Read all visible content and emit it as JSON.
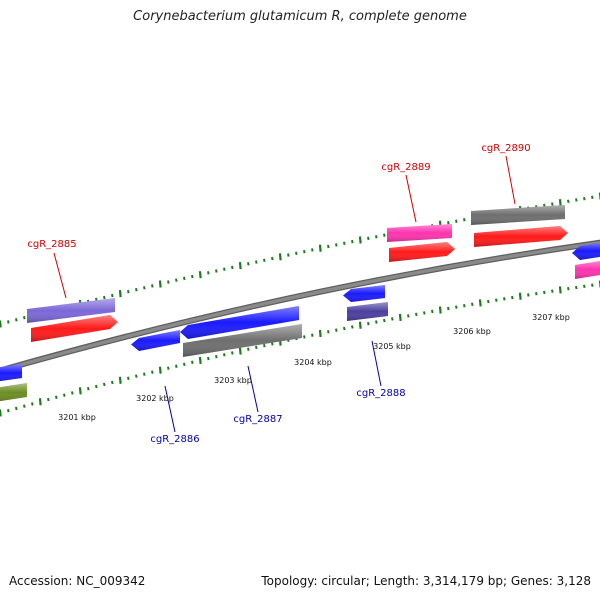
{
  "title": "Corynebacterium glutamicum R, complete genome",
  "footer": {
    "accession": "Accession: NC_009342",
    "stats": "Topology: circular; Length: 3,314,179 bp; Genes: 3,128"
  },
  "colors": {
    "axis": "#8a8a8a",
    "ticks": "#1d7a1d",
    "label_top": "#cc0000",
    "label_bottom": "#0000aa"
  },
  "kbp_labels": [
    "3201 kbp",
    "3202 kbp",
    "3203 kbp",
    "3204 kbp",
    "3205 kbp",
    "3206 kbp",
    "3207 kbp"
  ],
  "gene_labels": [
    {
      "name": "cgR_2885",
      "strand": "top"
    },
    {
      "name": "cgR_2889",
      "strand": "top"
    },
    {
      "name": "cgR_2890",
      "strand": "top"
    },
    {
      "name": "cgR_2886",
      "strand": "bottom"
    },
    {
      "name": "cgR_2887",
      "strand": "bottom"
    },
    {
      "name": "cgR_2888",
      "strand": "bottom"
    }
  ],
  "genes": [
    {
      "id": "g2885a",
      "color": "#7b68d8",
      "direction": "none"
    },
    {
      "id": "g2885b",
      "color": "#ff1a1a",
      "direction": "right"
    },
    {
      "id": "g2889a",
      "color": "#ff33b0",
      "direction": "none"
    },
    {
      "id": "g2889b",
      "color": "#ff1a1a",
      "direction": "right"
    },
    {
      "id": "g2890a",
      "color": "#6e6e6e",
      "direction": "none"
    },
    {
      "id": "g2890b",
      "color": "#ff1a1a",
      "direction": "right"
    },
    {
      "id": "gEdgeRa",
      "color": "#1a1aff",
      "direction": "left"
    },
    {
      "id": "gEdgeRb",
      "color": "#ff33b0",
      "direction": "none"
    },
    {
      "id": "g2886",
      "color": "#1a1aff",
      "direction": "left"
    },
    {
      "id": "g2887a",
      "color": "#1a1aff",
      "direction": "left"
    },
    {
      "id": "g2887b",
      "color": "#6e6e6e",
      "direction": "none"
    },
    {
      "id": "g2888a",
      "color": "#1a1aff",
      "direction": "left"
    },
    {
      "id": "g2888b",
      "color": "#4a3fa0",
      "direction": "none"
    },
    {
      "id": "gEdgeLa",
      "color": "#1a1aff",
      "direction": "none"
    },
    {
      "id": "gEdgeLb",
      "color": "#6b8e23",
      "direction": "none"
    }
  ]
}
